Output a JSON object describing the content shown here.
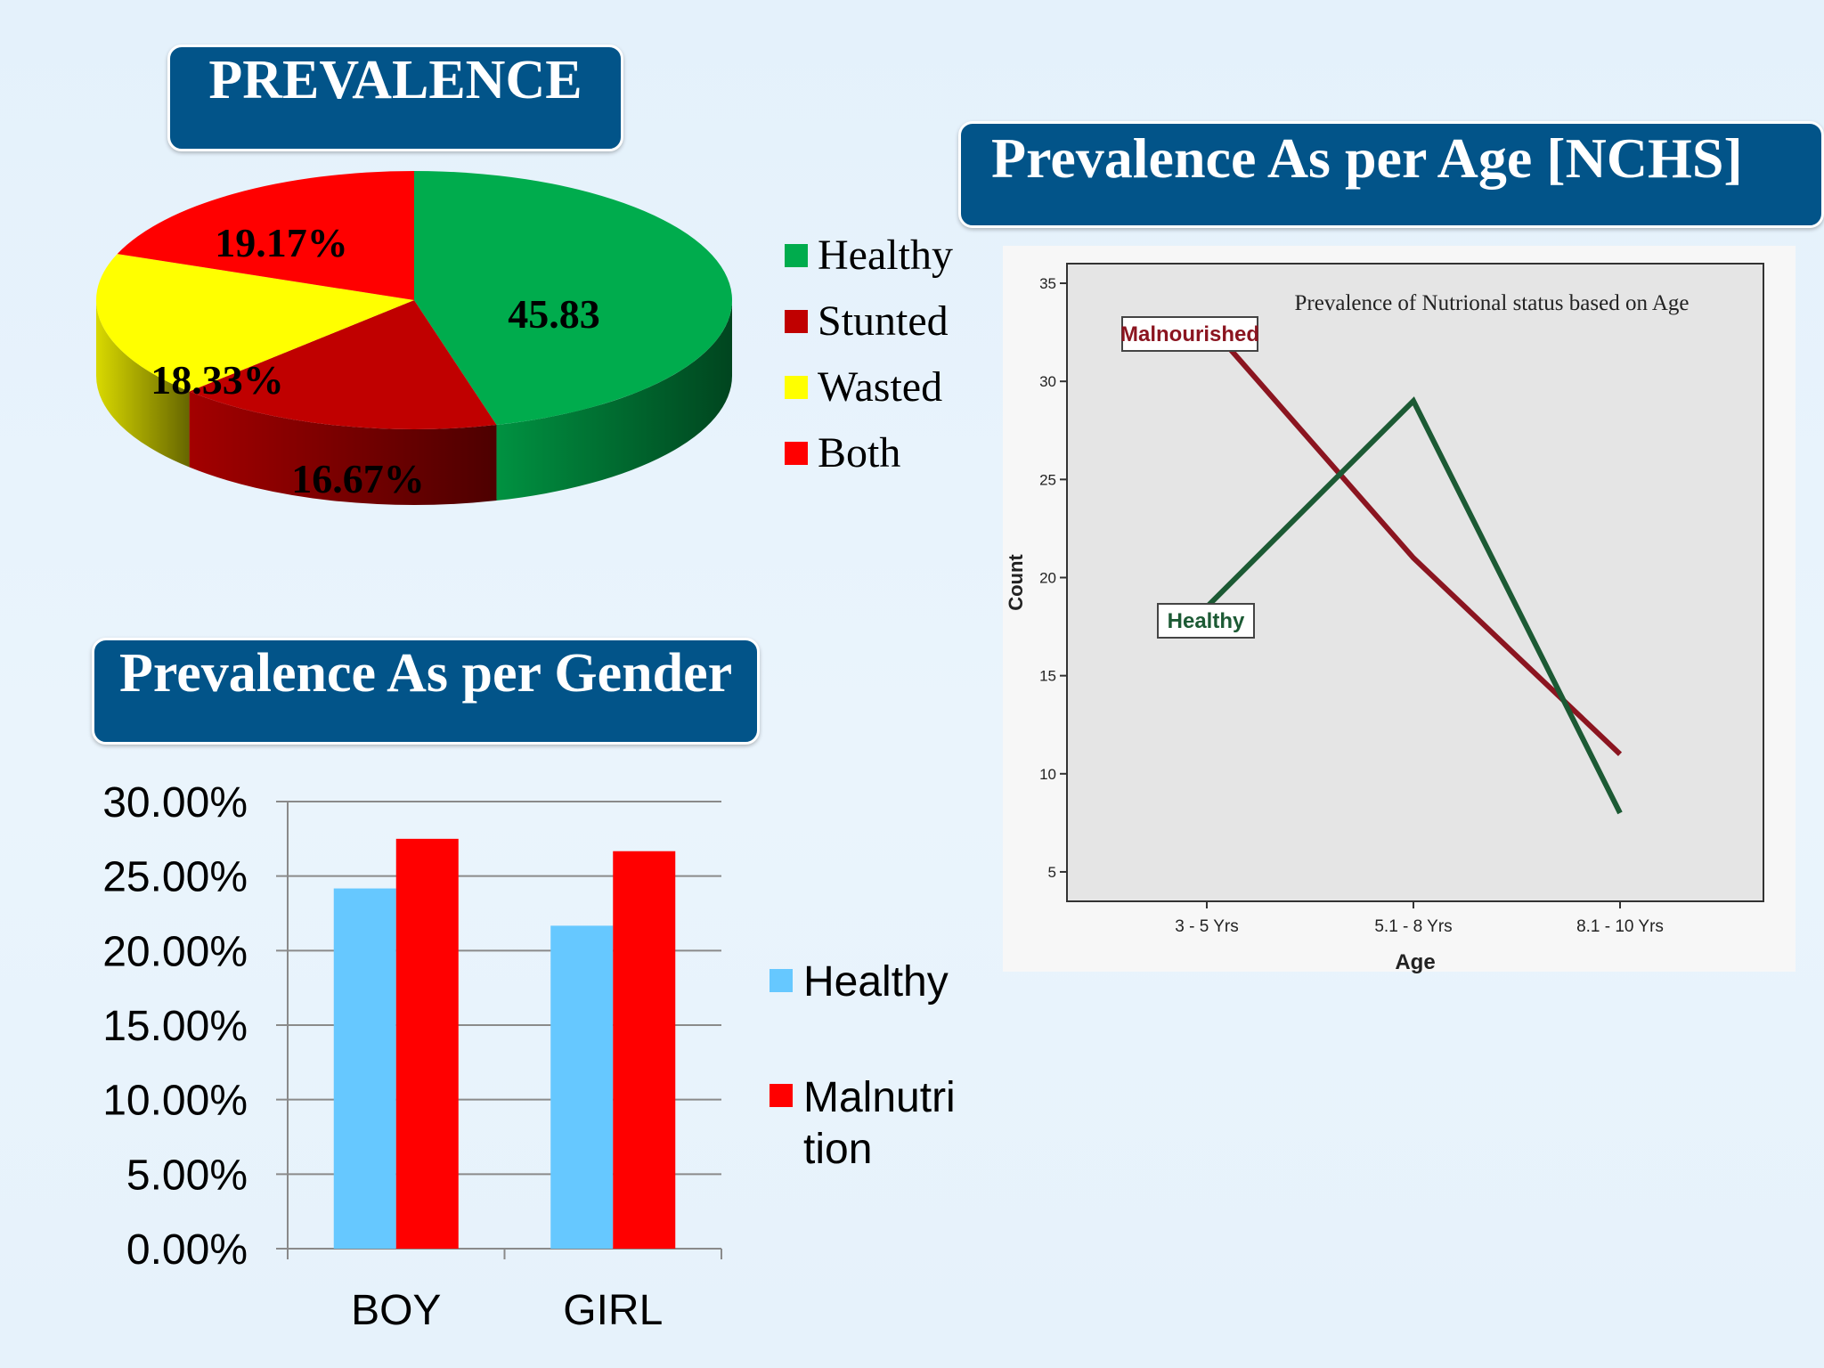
{
  "banners": {
    "prevalence": "PREVALENCE",
    "age": "Prevalence As per Age [NCHS]",
    "gender": "Prevalence As per Gender"
  },
  "chart_data": [
    {
      "type": "pie",
      "labels": [
        "Healthy",
        "Stunted",
        "Wasted",
        "Both"
      ],
      "values": [
        45.83,
        16.67,
        18.33,
        19.17
      ],
      "value_labels": [
        "45.83",
        "16.67%",
        "18.33%",
        "19.17%"
      ],
      "colors": [
        "#00ac4d",
        "#c00000",
        "#ffff00",
        "#ff0000"
      ],
      "legend": [
        "Healthy",
        "Stunted",
        "Wasted",
        "Both"
      ],
      "legend_position": "right",
      "style": "3d"
    },
    {
      "type": "line",
      "title": "Prevalence of Nutrional status based on Age",
      "xlabel": "Age",
      "ylabel": "Count",
      "categories": [
        "3 - 5 Yrs",
        "5.1 - 8 Yrs",
        "8.1 - 10 Yrs"
      ],
      "yticks": [
        "5",
        "10",
        "15",
        "20",
        "25",
        "30",
        "35"
      ],
      "ylim": [
        3.5,
        36
      ],
      "series": [
        {
          "name": "Malnourished",
          "values": [
            33,
            21,
            11
          ],
          "color": "#8b1520"
        },
        {
          "name": "Healthy",
          "values": [
            18.5,
            29,
            8
          ],
          "color": "#1c5a34"
        }
      ],
      "grid": false
    },
    {
      "type": "bar",
      "categories": [
        "BOY",
        "GIRL"
      ],
      "series": [
        {
          "name": "Healthy",
          "values": [
            24.17,
            21.67
          ],
          "color": "#66c8ff"
        },
        {
          "name": "Malnutri tion",
          "values": [
            27.5,
            26.67
          ],
          "color": "#ff0000"
        }
      ],
      "yticks": [
        "0.00%",
        "5.00%",
        "10.00%",
        "15.00%",
        "20.00%",
        "25.00%",
        "30.00%"
      ],
      "ylim": [
        0,
        30
      ],
      "grid": true,
      "legend_position": "right"
    }
  ]
}
